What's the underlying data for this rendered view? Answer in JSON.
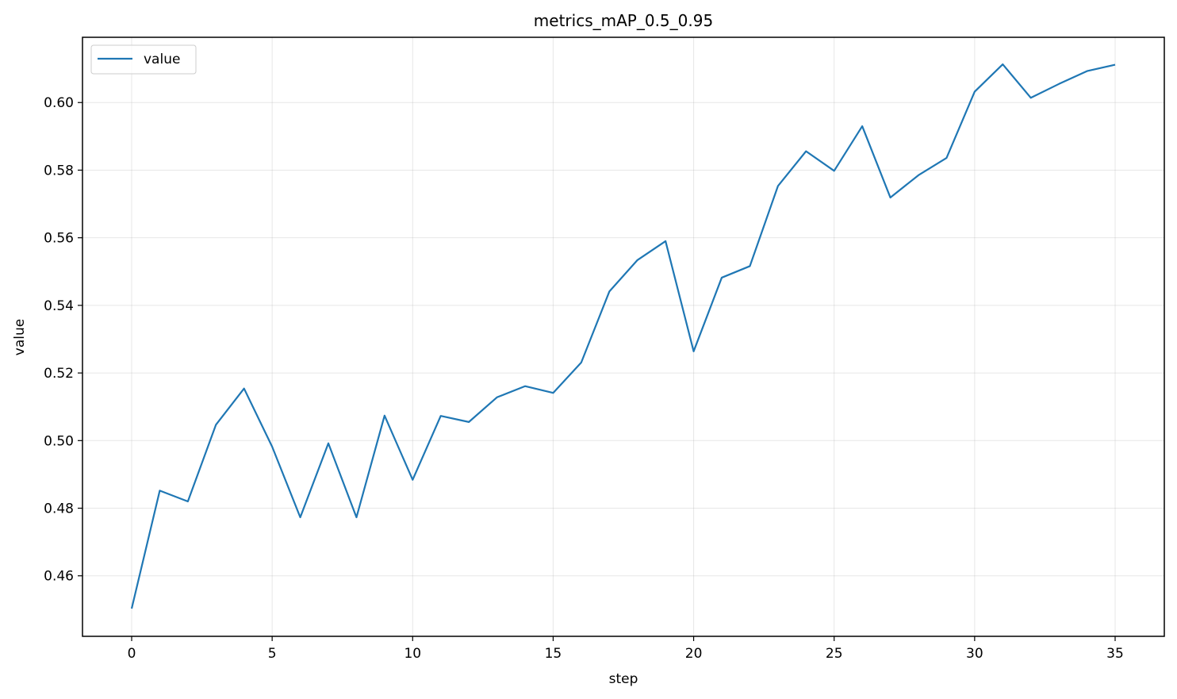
{
  "chart_data": {
    "type": "line",
    "title": "metrics_mAP_0.5_0.95",
    "xlabel": "step",
    "ylabel": "value",
    "xlim": [
      -1.75,
      36.75
    ],
    "ylim": [
      0.4421,
      0.6193
    ],
    "xticks": [
      0,
      5,
      10,
      15,
      20,
      25,
      30,
      35
    ],
    "xtick_labels": [
      "0",
      "5",
      "10",
      "15",
      "20",
      "25",
      "30",
      "35"
    ],
    "yticks": [
      0.46,
      0.48,
      0.5,
      0.52,
      0.54,
      0.56,
      0.58,
      0.6
    ],
    "ytick_labels": [
      "0.46",
      "0.48",
      "0.50",
      "0.52",
      "0.54",
      "0.56",
      "0.58",
      "0.60"
    ],
    "grid": true,
    "legend_position": "top-left",
    "series": [
      {
        "name": "value",
        "color": "#1f77b4",
        "x": [
          0,
          1,
          2,
          3,
          4,
          5,
          6,
          7,
          8,
          9,
          10,
          11,
          12,
          13,
          14,
          15,
          16,
          17,
          18,
          19,
          20,
          21,
          22,
          23,
          24,
          25,
          26,
          27,
          28,
          29,
          30,
          31,
          32,
          33,
          34,
          35
        ],
        "values": [
          0.4503,
          0.4852,
          0.482,
          0.5047,
          0.5154,
          0.4982,
          0.4773,
          0.4992,
          0.4773,
          0.5074,
          0.4884,
          0.5073,
          0.5055,
          0.5128,
          0.5161,
          0.5141,
          0.5231,
          0.5441,
          0.5534,
          0.559,
          0.5264,
          0.5482,
          0.5516,
          0.5753,
          0.5856,
          0.5798,
          0.593,
          0.5719,
          0.5785,
          0.5836,
          0.6032,
          0.6113,
          0.6014,
          0.6055,
          0.6093,
          0.6112
        ]
      }
    ]
  }
}
